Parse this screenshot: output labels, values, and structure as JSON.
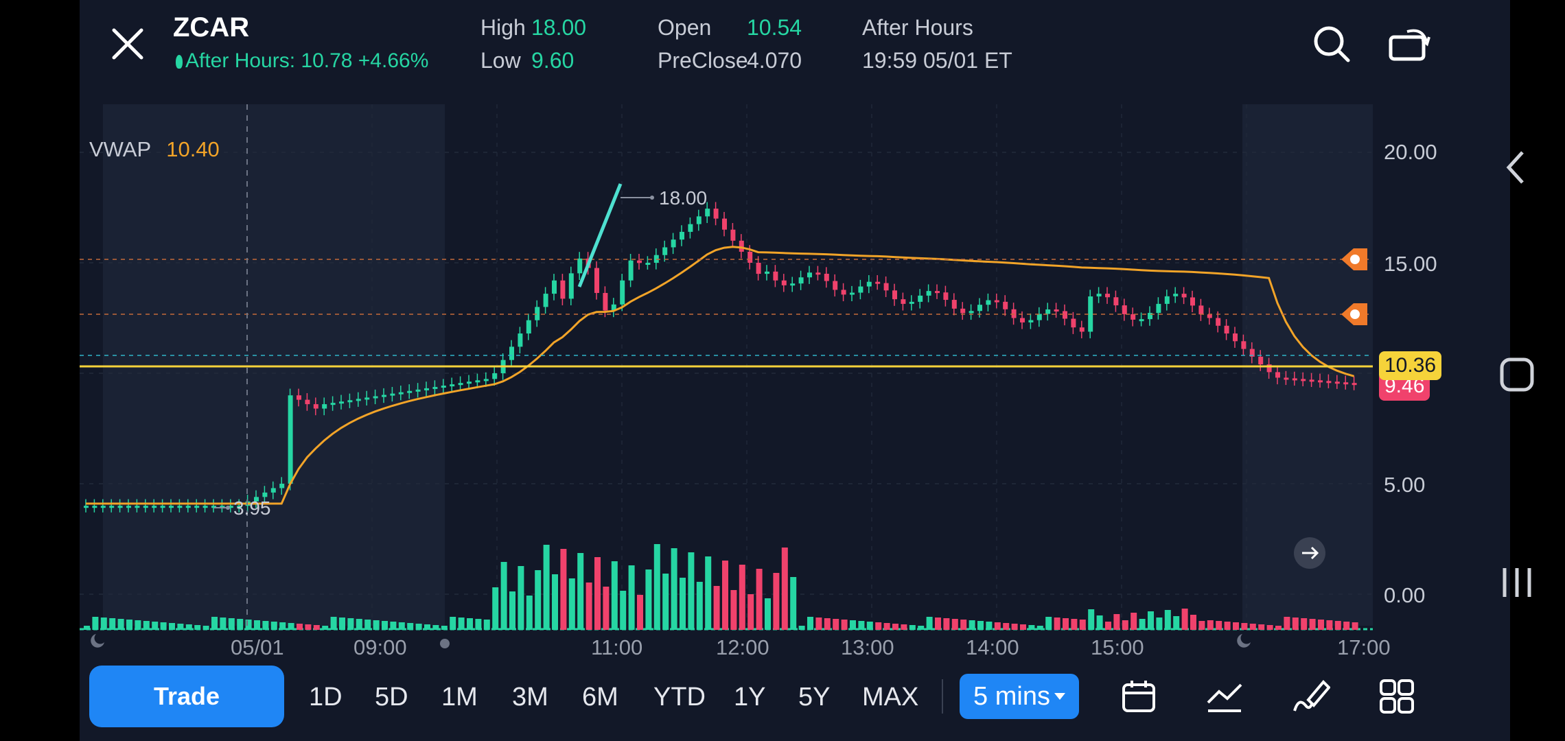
{
  "header": {
    "ticker": "ZCAR",
    "after_hours_line": "After Hours: 10.78 +4.66%",
    "high_label": "High",
    "high_value": "18.00",
    "low_label": "Low",
    "low_value": "9.60",
    "open_label": "Open",
    "open_value": "10.54",
    "preclose_label": "PreClose",
    "preclose_value": "4.070",
    "session_label": "After Hours",
    "session_time": "19:59 05/01 ET"
  },
  "indicator": {
    "name": "VWAP",
    "value": "10.40"
  },
  "chart_data": {
    "type": "candlestick",
    "ylabels": [
      "20.00",
      "15.00",
      "5.00",
      "0.00"
    ],
    "xlabels": [
      "05/01",
      "09:00",
      "11:00",
      "12:00",
      "13:00",
      "14:00",
      "15:00",
      "17:00"
    ],
    "high_marker": "18.00",
    "low_marker": "3.95",
    "current_price_tag": "10.36",
    "last_price_tag": "9.46",
    "vwap_value": 10.4,
    "alert_levels": [
      15.0,
      12.6
    ],
    "colors": {
      "up": "#26d6a3",
      "down": "#f0426c",
      "vwap": "#f2a428",
      "price_line": "#f6d33a"
    }
  },
  "timeframes": {
    "trade": "Trade",
    "items": [
      "1D",
      "5D",
      "1M",
      "3M",
      "6M",
      "YTD",
      "1Y",
      "5Y",
      "MAX"
    ],
    "interval": "5 mins"
  },
  "icons": {
    "close": "close-icon",
    "search": "search-icon",
    "rotate": "rotate-icon",
    "calendar": "calendar-icon",
    "indicators": "indicator-icon",
    "draw": "draw-icon",
    "layout": "grid-icon"
  }
}
